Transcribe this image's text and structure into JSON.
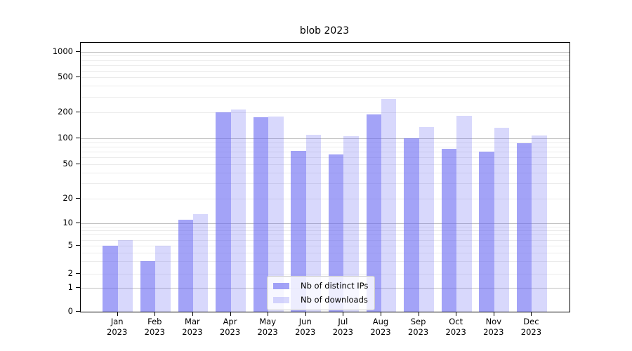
{
  "chart_data": {
    "type": "bar",
    "title": "blob 2023",
    "categories": [
      "Jan",
      "Feb",
      "Mar",
      "Apr",
      "May",
      "Jun",
      "Jul",
      "Aug",
      "Sep",
      "Oct",
      "Nov",
      "Dec"
    ],
    "year": "2023",
    "series": [
      {
        "name": "Nb of distinct IPs",
        "color": "#6565f2",
        "alpha": 0.6,
        "values": [
          5,
          3,
          11,
          200,
          175,
          72,
          65,
          190,
          100,
          76,
          70,
          87
        ]
      },
      {
        "name": "Nb of downloads",
        "color": "#6565f2",
        "alpha": 0.25,
        "values": [
          6,
          5,
          13,
          215,
          180,
          110,
          106,
          285,
          134,
          182,
          132,
          107
        ]
      }
    ],
    "yscale": "symlog",
    "yticks": [
      0,
      1,
      2,
      5,
      10,
      20,
      50,
      100,
      200,
      500,
      1000
    ],
    "ylim": [
      0,
      1300
    ],
    "grid": true,
    "legend_position": "lower center"
  },
  "colors": {
    "major_grid": "#c2c2c2",
    "minor_grid": "#ebebeb",
    "spine": "#000000",
    "text": "#000000"
  }
}
